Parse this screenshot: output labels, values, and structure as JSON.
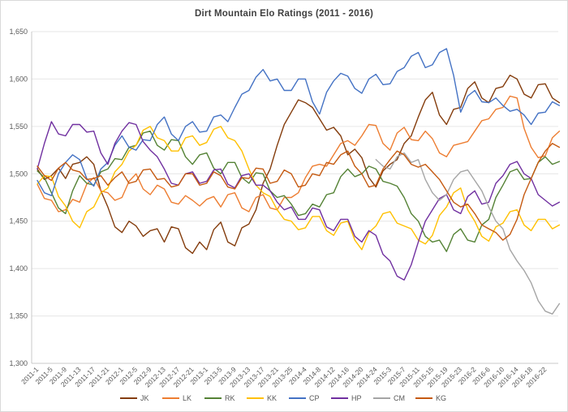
{
  "chart_data": {
    "type": "line",
    "title": "Dirt Mountain Elo Ratings (2011 - 2016)",
    "xlabel": "",
    "ylabel": "",
    "ylim": [
      1300,
      1650
    ],
    "y_step": 50,
    "y_tick_labels": [
      "1,300",
      "1,350",
      "1,400",
      "1,450",
      "1,500",
      "1,550",
      "1,600",
      "1,650"
    ],
    "grid": "horizontal",
    "legend_position": "bottom",
    "points_per_tick": 2,
    "x_tick_labels": [
      "2011-1",
      "2011-5",
      "2011-9",
      "2011-13",
      "2011-17",
      "2011-21",
      "2012-1",
      "2012-5",
      "2012-9",
      "2012-13",
      "2012-17",
      "2012-21",
      "2013-1",
      "2013-5",
      "2013-9",
      "2013-13",
      "2013-17",
      "2013-21",
      "2013-25",
      "2014-4",
      "2014-8",
      "2014-12",
      "2014-16",
      "2014-20",
      "2014-24",
      "2015-3",
      "2015-7",
      "2015-11",
      "2015-15",
      "2015-19",
      "2015-23",
      "2016-2",
      "2016-6",
      "2016-10",
      "2016-14",
      "2016-18",
      "2016-22"
    ],
    "series": [
      {
        "name": "JK",
        "color": "#843C0C",
        "values": [
          1505,
          1494,
          1498,
          1506,
          1495,
          1510,
          1512,
          1518,
          1510,
          1482,
          1465,
          1444,
          1438,
          1450,
          1445,
          1434,
          1440,
          1442,
          1428,
          1444,
          1442,
          1422,
          1416,
          1428,
          1420,
          1441,
          1449,
          1428,
          1424,
          1443,
          1447,
          1462,
          1490,
          1505,
          1530,
          1552,
          1565,
          1578,
          1575,
          1570,
          1558,
          1546,
          1549,
          1540,
          1520,
          1526,
          1517,
          1496,
          1486,
          1503,
          1510,
          1515,
          1532,
          1540,
          1560,
          1578,
          1586,
          1562,
          1552,
          1568,
          1570,
          1590,
          1597,
          1580,
          1575,
          1590,
          1592,
          1604,
          1600,
          1584,
          1580,
          1594,
          1595,
          1580,
          1575
        ]
      },
      {
        "name": "LK",
        "color": "#ED7D31",
        "values": [
          1489,
          1474,
          1472,
          1460,
          1462,
          1473,
          1470,
          1489,
          1496,
          1482,
          1480,
          1472,
          1475,
          1492,
          1500,
          1484,
          1478,
          1488,
          1484,
          1470,
          1468,
          1477,
          1472,
          1466,
          1473,
          1476,
          1465,
          1478,
          1480,
          1464,
          1460,
          1475,
          1478,
          1464,
          1462,
          1475,
          1475,
          1480,
          1496,
          1508,
          1510,
          1508,
          1520,
          1532,
          1535,
          1530,
          1540,
          1552,
          1551,
          1532,
          1525,
          1543,
          1549,
          1536,
          1535,
          1545,
          1537,
          1522,
          1518,
          1530,
          1532,
          1534,
          1545,
          1556,
          1558,
          1568,
          1570,
          1582,
          1580,
          1548,
          1528,
          1517,
          1519,
          1538,
          1545
        ]
      },
      {
        "name": "RK",
        "color": "#548235",
        "values": [
          1503,
          1496,
          1480,
          1464,
          1458,
          1482,
          1498,
          1490,
          1488,
          1502,
          1505,
          1516,
          1515,
          1528,
          1530,
          1543,
          1545,
          1530,
          1525,
          1536,
          1535,
          1518,
          1510,
          1520,
          1522,
          1506,
          1500,
          1512,
          1512,
          1496,
          1490,
          1501,
          1500,
          1482,
          1475,
          1477,
          1468,
          1456,
          1458,
          1468,
          1465,
          1478,
          1480,
          1497,
          1505,
          1497,
          1500,
          1508,
          1505,
          1492,
          1490,
          1487,
          1475,
          1458,
          1450,
          1434,
          1428,
          1430,
          1418,
          1436,
          1442,
          1430,
          1428,
          1446,
          1452,
          1475,
          1488,
          1502,
          1505,
          1494,
          1495,
          1512,
          1518,
          1510,
          1513
        ]
      },
      {
        "name": "KK",
        "color": "#FFC000",
        "values": [
          1489,
          1498,
          1497,
          1476,
          1466,
          1450,
          1443,
          1460,
          1465,
          1480,
          1485,
          1502,
          1510,
          1524,
          1530,
          1546,
          1550,
          1538,
          1535,
          1524,
          1524,
          1538,
          1540,
          1530,
          1533,
          1547,
          1550,
          1538,
          1535,
          1524,
          1505,
          1488,
          1480,
          1476,
          1462,
          1452,
          1450,
          1441,
          1443,
          1455,
          1455,
          1440,
          1435,
          1448,
          1450,
          1430,
          1420,
          1438,
          1445,
          1458,
          1460,
          1448,
          1445,
          1442,
          1430,
          1426,
          1435,
          1456,
          1465,
          1480,
          1485,
          1462,
          1450,
          1434,
          1429,
          1444,
          1448,
          1460,
          1462,
          1446,
          1440,
          1452,
          1452,
          1442,
          1446
        ]
      },
      {
        "name": "CP",
        "color": "#4472C4",
        "values": [
          1493,
          1480,
          1477,
          1500,
          1512,
          1520,
          1515,
          1495,
          1487,
          1505,
          1512,
          1530,
          1540,
          1528,
          1525,
          1536,
          1535,
          1552,
          1560,
          1542,
          1535,
          1550,
          1555,
          1544,
          1545,
          1560,
          1562,
          1555,
          1570,
          1584,
          1588,
          1602,
          1610,
          1598,
          1600,
          1588,
          1588,
          1600,
          1600,
          1576,
          1563,
          1586,
          1598,
          1606,
          1603,
          1590,
          1585,
          1600,
          1605,
          1594,
          1595,
          1608,
          1612,
          1624,
          1628,
          1612,
          1615,
          1628,
          1632,
          1604,
          1565,
          1582,
          1588,
          1576,
          1575,
          1580,
          1572,
          1566,
          1568,
          1562,
          1552,
          1564,
          1565,
          1576,
          1572
        ]
      },
      {
        "name": "HP",
        "color": "#7030A0",
        "values": [
          1505,
          1532,
          1555,
          1542,
          1540,
          1552,
          1552,
          1544,
          1545,
          1522,
          1510,
          1532,
          1545,
          1554,
          1552,
          1534,
          1525,
          1518,
          1505,
          1490,
          1488,
          1500,
          1502,
          1490,
          1492,
          1504,
          1505,
          1489,
          1485,
          1498,
          1500,
          1488,
          1488,
          1482,
          1470,
          1462,
          1465,
          1452,
          1452,
          1464,
          1462,
          1444,
          1440,
          1452,
          1452,
          1434,
          1428,
          1440,
          1435,
          1415,
          1408,
          1392,
          1388,
          1404,
          1428,
          1450,
          1462,
          1474,
          1478,
          1462,
          1458,
          1476,
          1482,
          1468,
          1470,
          1490,
          1498,
          1510,
          1513,
          1500,
          1495,
          1478,
          1472,
          1466,
          1470
        ]
      },
      {
        "name": "CM",
        "color": "#A5A5A5",
        "values": [
          null,
          null,
          null,
          null,
          null,
          null,
          null,
          null,
          null,
          null,
          null,
          null,
          null,
          null,
          null,
          null,
          null,
          null,
          null,
          null,
          null,
          null,
          null,
          null,
          null,
          null,
          null,
          null,
          null,
          null,
          null,
          null,
          null,
          null,
          null,
          null,
          null,
          null,
          null,
          null,
          null,
          null,
          null,
          null,
          null,
          null,
          null,
          null,
          1515,
          1508,
          1505,
          1518,
          1522,
          1512,
          1515,
          1494,
          1480,
          1472,
          1478,
          1494,
          1502,
          1504,
          1493,
          1482,
          1465,
          1450,
          1442,
          1420,
          1408,
          1398,
          1385,
          1366,
          1355,
          1352,
          1363
        ]
      },
      {
        "name": "KG",
        "color": "#C55A11",
        "values": [
          1508,
          1498,
          1493,
          1506,
          1512,
          1504,
          1502,
          1494,
          1495,
          1498,
          1488,
          1496,
          1502,
          1490,
          1492,
          1504,
          1505,
          1494,
          1495,
          1486,
          1488,
          1500,
          1500,
          1488,
          1490,
          1502,
          1498,
          1486,
          1484,
          1496,
          1495,
          1506,
          1505,
          1490,
          1492,
          1504,
          1500,
          1486,
          1488,
          1500,
          1498,
          1512,
          1510,
          1520,
          1524,
          1508,
          1500,
          1486,
          1488,
          1505,
          1515,
          1524,
          1520,
          1510,
          1507,
          1510,
          1502,
          1494,
          1482,
          1470,
          1465,
          1468,
          1458,
          1446,
          1442,
          1438,
          1430,
          1436,
          1452,
          1478,
          1495,
          1512,
          1524,
          1532,
          1528
        ]
      }
    ]
  },
  "style": {
    "title_color": "#404040",
    "axis_label_color": "#595959",
    "gridline_color": "#e6e6e6",
    "axis_line_color": "#c9c9c9"
  }
}
